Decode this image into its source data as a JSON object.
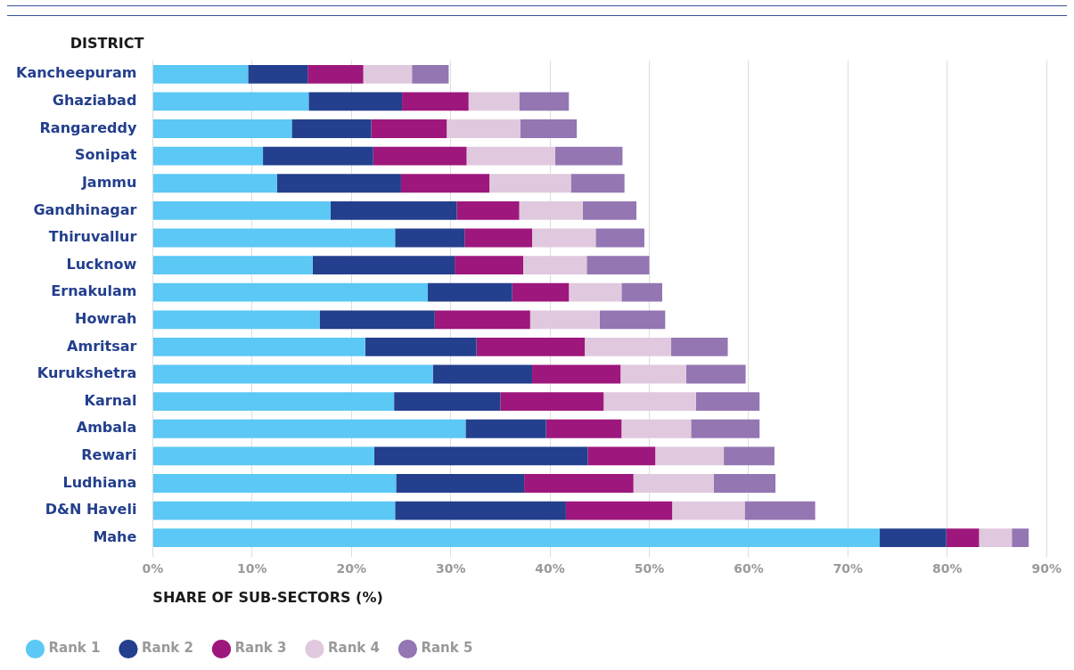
{
  "chart_data": {
    "type": "bar",
    "orientation": "horizontal",
    "stacked": true,
    "ylabel": "DISTRICT",
    "xlabel": "SHARE OF SUB-SECTORS (%)",
    "categories": [
      "Kancheepuram",
      "Ghaziabad",
      "Rangareddy",
      "Sonipat",
      "Jammu",
      "Gandhinagar",
      "Thiruvallur",
      "Lucknow",
      "Ernakulam",
      "Howrah",
      "Amritsar",
      "Kurukshetra",
      "Karnal",
      "Ambala",
      "Rewari",
      "Ludhiana",
      "D&N Haveli",
      "Mahe"
    ],
    "series": [
      {
        "name": "Rank 1",
        "color": "#5bc8f5",
        "values": [
          9.6,
          15.7,
          14.0,
          11.1,
          12.5,
          17.9,
          24.4,
          16.1,
          27.7,
          16.8,
          21.4,
          28.2,
          24.3,
          31.5,
          22.3,
          24.5,
          24.4,
          73.2
        ]
      },
      {
        "name": "Rank 2",
        "color": "#233f8d",
        "values": [
          6.0,
          9.4,
          8.0,
          11.1,
          12.5,
          12.7,
          7.0,
          14.3,
          8.5,
          11.6,
          11.2,
          10.0,
          10.7,
          8.1,
          21.5,
          12.9,
          17.2,
          6.7
        ]
      },
      {
        "name": "Rank 3",
        "color": "#9e177c",
        "values": [
          5.6,
          6.7,
          7.6,
          9.4,
          8.9,
          6.3,
          6.8,
          6.9,
          5.7,
          9.6,
          10.9,
          8.9,
          10.4,
          7.6,
          6.8,
          11.0,
          10.7,
          3.3
        ]
      },
      {
        "name": "Rank 4",
        "color": "#e0c9de",
        "values": [
          4.9,
          5.1,
          7.4,
          8.9,
          8.2,
          6.4,
          6.4,
          6.4,
          5.3,
          7.0,
          8.7,
          6.6,
          9.3,
          7.0,
          6.9,
          8.1,
          7.3,
          3.3
        ]
      },
      {
        "name": "Rank 5",
        "color": "#9476b3",
        "values": [
          3.7,
          5.0,
          5.7,
          6.8,
          5.4,
          5.4,
          4.9,
          6.3,
          4.1,
          6.6,
          5.7,
          6.0,
          6.4,
          6.9,
          5.1,
          6.2,
          7.1,
          1.7
        ]
      }
    ],
    "xlim": [
      0,
      90
    ],
    "xticks": [
      {
        "value": 0,
        "label": "0%"
      },
      {
        "value": 10,
        "label": "10%"
      },
      {
        "value": 20,
        "label": "20%"
      },
      {
        "value": 30,
        "label": "30%"
      },
      {
        "value": 40,
        "label": "40%"
      },
      {
        "value": 50,
        "label": "50%"
      },
      {
        "value": 60,
        "label": "60%"
      },
      {
        "value": 70,
        "label": "70%"
      },
      {
        "value": 80,
        "label": "80%"
      },
      {
        "value": 90,
        "label": "90%"
      }
    ],
    "grid": "x",
    "legend": "bottom left"
  }
}
